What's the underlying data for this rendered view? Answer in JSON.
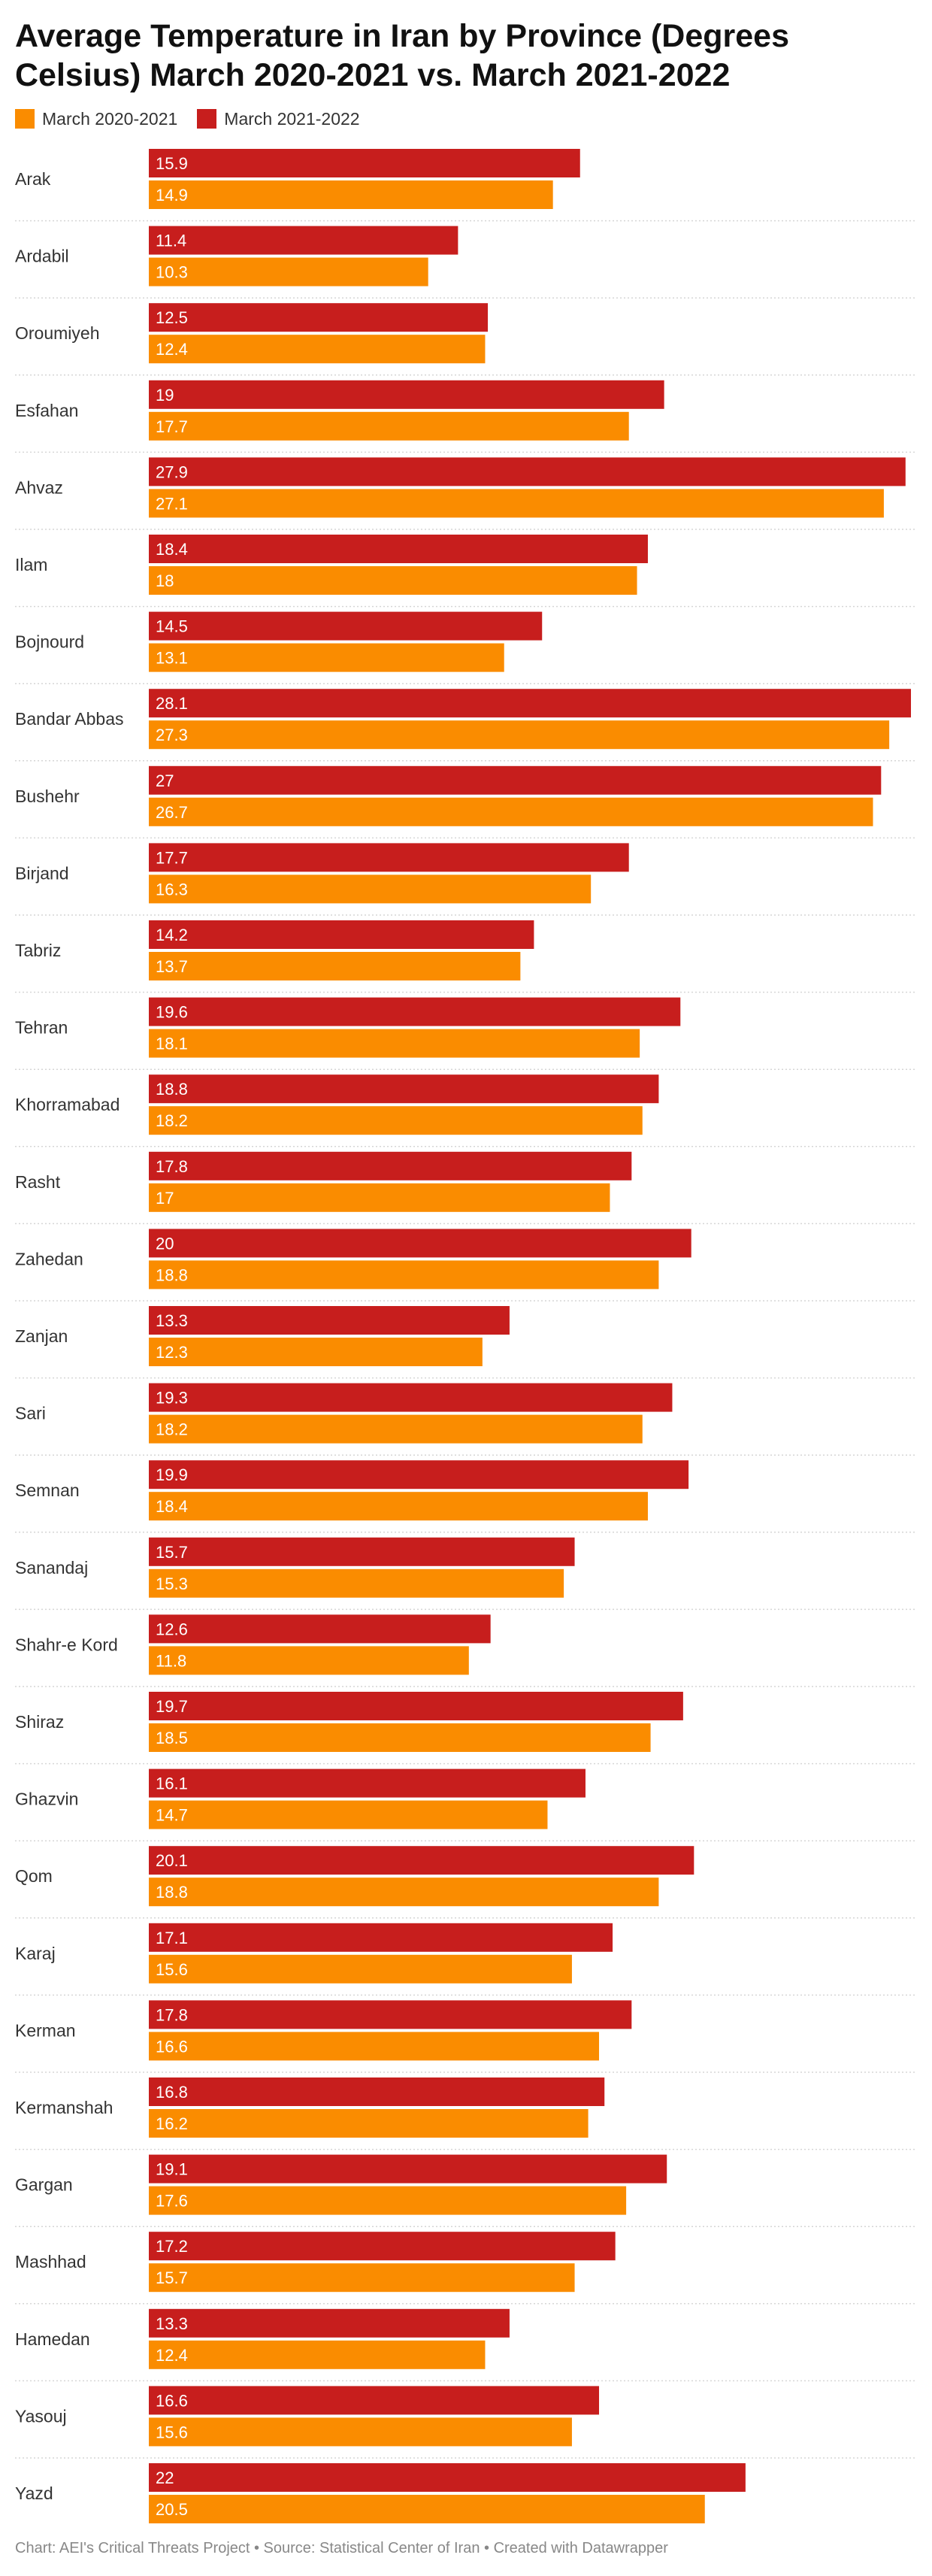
{
  "chart_data": {
    "type": "bar",
    "orientation": "horizontal",
    "title": "Average Temperature in Iran by Province (Degrees Celsius) March 2020-2021 vs. March 2021-2022",
    "xlim": [
      0,
      28.1
    ],
    "grid": false,
    "legend_placement": "top-left",
    "categories": [
      "Arak",
      "Ardabil",
      "Oroumiyeh",
      "Esfahan",
      "Ahvaz",
      "Ilam",
      "Bojnourd",
      "Bandar Abbas",
      "Bushehr",
      "Birjand",
      "Tabriz",
      "Tehran",
      "Khorramabad",
      "Rasht",
      "Zahedan",
      "Zanjan",
      "Sari",
      "Semnan",
      "Sanandaj",
      "Shahr-e Kord",
      "Shiraz",
      "Ghazvin",
      "Qom",
      "Karaj",
      "Kerman",
      "Kermanshah",
      "Gargan",
      "Mashhad",
      "Hamedan",
      "Yasouj",
      "Yazd"
    ],
    "series": [
      {
        "name": "March 2021-2022",
        "color": "#c71e1d",
        "values": [
          15.9,
          11.4,
          12.5,
          19,
          27.9,
          18.4,
          14.5,
          28.1,
          27,
          17.7,
          14.2,
          19.6,
          18.8,
          17.8,
          20,
          13.3,
          19.3,
          19.9,
          15.7,
          12.6,
          19.7,
          16.1,
          20.1,
          17.1,
          17.8,
          16.8,
          19.1,
          17.2,
          13.3,
          16.6,
          22
        ]
      },
      {
        "name": "March 2020-2021",
        "color": "#fa8c00",
        "values": [
          14.9,
          10.3,
          12.4,
          17.7,
          27.1,
          18,
          13.1,
          27.3,
          26.7,
          16.3,
          13.7,
          18.1,
          18.2,
          17,
          18.8,
          12.3,
          18.2,
          18.4,
          15.3,
          11.8,
          18.5,
          14.7,
          18.8,
          15.6,
          16.6,
          16.2,
          17.6,
          15.7,
          12.4,
          15.6,
          20.5
        ]
      }
    ],
    "legend": [
      {
        "label": "March 2020-2021",
        "color": "#fa8c00"
      },
      {
        "label": "March 2021-2022",
        "color": "#c71e1d"
      }
    ]
  },
  "footer": "Chart: AEI's Critical Threats Project • Source: Statistical Center of Iran • Created with Datawrapper"
}
